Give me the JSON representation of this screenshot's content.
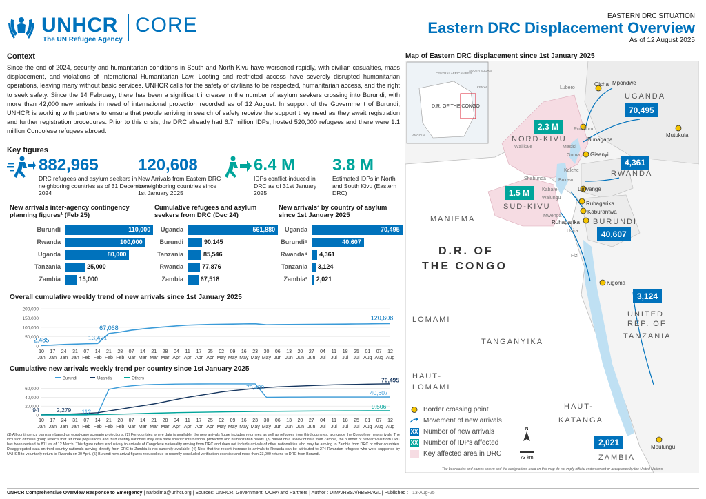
{
  "header": {
    "org": "UNHCR",
    "org_sub": "The UN Refugee Agency",
    "product": "CORE",
    "kicker": "EASTERN DRC SITUATION",
    "title": "Eastern DRC Displacement Overview",
    "date": "As of 12 August 2025"
  },
  "context": {
    "heading": "Context",
    "text": "Since the end of 2024, security and humanitarian conditions in South and North Kivu have worsened rapidly, with civilian casualties, mass displacement, and violations of International Humanitarian Law. Looting and restricted access have severely disrupted humanitarian operations, leaving many without basic services. UNHCR calls for the safety of civilians to be respected, humanitarian access, and the right to seek safety. Since the 14 February, there has been a significant increase in the number of asylum seekers crossing into Burundi, with more than 42,000 new arrivals in need of international protection recorded as of 12 August. In support of the Government of Burundi, UNHCR is working with partners to ensure that people arriving in search of safety receive the support they need as they await registration and further registration procedures. Prior to this crisis, the DRC already had 6.7 million IDPs, hosted 520,000 refugees and there were 1.1 million Congolese refugees abroad."
  },
  "key_figures": {
    "heading": "Key figures",
    "items": [
      {
        "value": "882,965",
        "desc": "DRC refugees and asylum seekers in neighboring countries as of 31 December 2024"
      },
      {
        "value": "120,608",
        "desc": "New Arrivals from Eastern DRC to neighboring countries since 1st January 2025"
      },
      {
        "value": "6.4 M",
        "desc": "IDPs conflict-induced in DRC as of 31st January 2025"
      },
      {
        "value": "3.8 M",
        "desc": "Estimated IDPs in North and South Kivu (Eastern DRC)"
      }
    ]
  },
  "bar_charts": [
    {
      "title": "New arrivals inter-agency contingency planning figures¹ (Feb 25)",
      "chart_data": {
        "type": "bar",
        "categories": [
          "Burundi",
          "Rwanda",
          "Uganda",
          "Tanzania",
          "Zambia"
        ],
        "values": [
          110000,
          100000,
          80000,
          25000,
          15000
        ],
        "labels": [
          "110,000",
          "100,000",
          "80,000",
          "25,000",
          "15,000"
        ]
      }
    },
    {
      "title": "Cumulative refugees and asylum seekers from DRC (Dec 24)",
      "chart_data": {
        "type": "bar",
        "categories": [
          "Uganda",
          "Burundi",
          "Tanzania",
          "Rwanda",
          "Zambia"
        ],
        "values": [
          561880,
          90145,
          85546,
          77876,
          67518
        ],
        "labels": [
          "561,880",
          "90,145",
          "85,546",
          "77,876",
          "67,518"
        ]
      }
    },
    {
      "title": "New arrivals² by country of asylum since 1st January 2025",
      "chart_data": {
        "type": "bar",
        "categories": [
          "Uganda",
          "Burundi⁵",
          "Rwanda⁴",
          "Tanzania",
          "Zambia³"
        ],
        "values": [
          70495,
          40607,
          4361,
          3124,
          2021
        ],
        "labels": [
          "70,495",
          "40,607",
          "4,361",
          "3,124",
          "2,021"
        ]
      }
    }
  ],
  "trend_chart": {
    "title": "Overall cumulative weekly trend of new arrivals since 1st January 2025",
    "chart_data": {
      "type": "line",
      "y_ticks": [
        "200,000",
        "150,000",
        "100,000",
        "50,000",
        "0"
      ],
      "ylim": [
        0,
        200000
      ],
      "x_labels": [
        "10 Jan",
        "17 Jan",
        "24 Jan",
        "31 Jan",
        "07 Feb",
        "14 Feb",
        "21 Feb",
        "28 Feb",
        "07 Mar",
        "14 Mar",
        "21 Mar",
        "28 Mar",
        "04 Apr",
        "11 Apr",
        "17 Apr",
        "25 Apr",
        "02 May",
        "09 May",
        "16 May",
        "23 May",
        "30 May",
        "06 Jun",
        "13 Jun",
        "20 Jun",
        "27 Jun",
        "04 Jul",
        "11 Jul",
        "18 Jul",
        "25 Jul",
        "01 Aug",
        "07 Aug",
        "12 Aug"
      ],
      "values": [
        2485,
        5000,
        8000,
        10000,
        12000,
        13421,
        67068,
        75000,
        85000,
        92000,
        98000,
        103000,
        108000,
        112000,
        114000,
        116000,
        117000,
        118000,
        119000,
        119500,
        114000,
        115000,
        115500,
        116000,
        116500,
        117000,
        117500,
        118000,
        118500,
        119000,
        120000,
        120608
      ],
      "point_labels": [
        {
          "i": 0,
          "text": "2,485"
        },
        {
          "i": 5,
          "text": "13,421"
        },
        {
          "i": 6,
          "text": "67,068"
        },
        {
          "i": 31,
          "text": "120,608"
        }
      ]
    }
  },
  "country_chart": {
    "title": "Cumulative new arrivals weekly trend per country since 1st January 2025",
    "chart_data": {
      "type": "line",
      "y_ticks": [
        "60,000",
        "40,000",
        "20,000",
        "0"
      ],
      "ylim": [
        0,
        75000
      ],
      "x_labels": [
        "10 Jan",
        "17 Jan",
        "24 Jan",
        "31 Jan",
        "07 Feb",
        "14 Feb",
        "21 Feb",
        "28 Feb",
        "07 Mar",
        "14 Mar",
        "21 Mar",
        "28 Mar",
        "04 Apr",
        "11 Apr",
        "17 Apr",
        "25 Apr",
        "02 May",
        "09 May",
        "16 May",
        "23 May",
        "30 May",
        "06 Jun",
        "13 Jun",
        "20 Jun",
        "27 Jun",
        "04 Jul",
        "11 Jul",
        "18 Jul",
        "25 Jul",
        "01 Aug",
        "07 Aug",
        "12 Aug"
      ],
      "series": [
        {
          "name": "Burundi",
          "color": "#3B9BD8",
          "values": [
            0,
            0,
            0,
            0,
            0,
            2279,
            58000,
            63000,
            66000,
            68000,
            69000,
            69500,
            70000,
            70200,
            70300,
            70400,
            70420,
            70420,
            70420,
            70420,
            40000,
            40200,
            40300,
            40400,
            40450,
            40500,
            40520,
            40550,
            40570,
            40590,
            40600,
            40607
          ]
        },
        {
          "name": "Uganda",
          "color": "#15355E",
          "values": [
            94,
            800,
            1600,
            2500,
            3500,
            5000,
            9000,
            13000,
            17000,
            21000,
            25000,
            30000,
            35000,
            40000,
            44000,
            48000,
            52000,
            55000,
            57500,
            60000,
            62000,
            63500,
            64500,
            65500,
            66500,
            67500,
            68200,
            68800,
            69300,
            69800,
            70200,
            70495
          ]
        },
        {
          "name": "Others",
          "color": "#00A59B",
          "values": [
            112,
            200,
            300,
            400,
            500,
            700,
            1200,
            1800,
            2500,
            3200,
            3900,
            4500,
            5100,
            5600,
            6000,
            6400,
            6800,
            7100,
            7400,
            7700,
            8000,
            8200,
            8400,
            8600,
            8800,
            9000,
            9100,
            9200,
            9300,
            9400,
            9450,
            9506
          ]
        }
      ],
      "point_labels": [
        {
          "text": "94"
        },
        {
          "text": "2,279"
        },
        {
          "text": "112"
        },
        {
          "text": "70,420"
        },
        {
          "text": "70,495"
        },
        {
          "text": "40,607"
        },
        {
          "text": "9,506"
        }
      ]
    }
  },
  "footnotes": "(1) All contingency plans are based on worst-case scenario projections. (2) For countries where data is available, the new arrivals figure includes returnees as well as refugees from third countries, alongside the Congolese new arrivals. The inclusion of these group reflects that returnee populations and third country nationals may also have specific international protection and humanitarian needs. (3) Based on a review of data from Zambia, the number of new arrivals from DRC has been revised to 811 as of 12 March. This figure refers exclusively to arrivals of Congolese nationality arriving from DRC and does not include arrivals of other nationalities who may be arriving to Zambia from DRC or other countries. Disaggregated data on third country nationals arriving directly from DRC to Zambia is not currently available. (4) Note that the recent increase in arrivals to Rwanda can be attributed to 274 Rwandan refugees who were supported by UNHCR to voluntarily return to Rwanda on 30 April. (5) Burundi new arrival figures reduced due to recently concluded verification exercise and more than 23,000 returns to DRC from Burundi.",
  "footer": {
    "left": "UNHCR Comprehensive Overview Response to Emergency",
    "mid": " | narbdima@unhcr.org | Sources: UNHCR, Government, OCHA and Partners | Author : DIMA/RBSA/RBEHAGL | Published :",
    "date": "13-Aug-25"
  },
  "map": {
    "title": "Map of Eastern DRC displacement since 1st January 2025",
    "inset_label": "D.R. OF THE CONGO",
    "inset_labels": [
      "CENTRAL AFRICAN REP.",
      "SOUTH SUDAN",
      "KENYA",
      "ANGOLA"
    ],
    "regions": [
      "UGANDA",
      "NORD-KIVU",
      "RWANDA",
      "SUD-KIVU",
      "MANIEMA",
      "BURUNDI",
      "D.R. OF",
      "THE CONGO",
      "LOMAMI",
      "TANGANYIKA",
      "UNITED",
      "REP. OF",
      "TANZANIA",
      "HAUT-",
      "LOMAMI",
      "HAUT-",
      "KATANGA",
      "ZAMBIA"
    ],
    "places": [
      "Oicha",
      "Mpondwe",
      "Lubero",
      "Rutshuru",
      "Bunagana",
      "Mutukula",
      "Walikale",
      "Masisi",
      "Goma",
      "Gisenyi",
      "Kalehe",
      "Shabunda",
      "Bukavu",
      "Kabare",
      "Walungu",
      "Dinvange",
      "Ruhagarika",
      "Kaburantwa",
      "Mwenga",
      "Ruhagarika",
      "Uvira",
      "Fizi",
      "Kigoma",
      "Mpulungu"
    ],
    "boxes": [
      {
        "value": "70,495",
        "kind": "arrivals"
      },
      {
        "value": "2.3 M",
        "kind": "idps"
      },
      {
        "value": "4,361",
        "kind": "arrivals"
      },
      {
        "value": "1.5 M",
        "kind": "idps"
      },
      {
        "value": "40,607",
        "kind": "arrivals"
      },
      {
        "value": "3,124",
        "kind": "arrivals"
      },
      {
        "value": "2,021",
        "kind": "arrivals"
      }
    ],
    "legend": [
      {
        "icon": "border-crossing-icon",
        "label": "Border crossing point"
      },
      {
        "icon": "arrow-icon",
        "label": "Movement of new arrivals"
      },
      {
        "icon": "arrivals-box-icon",
        "label": "Number of new arrivals",
        "sym": "XX"
      },
      {
        "icon": "idps-box-icon",
        "label": "Number of IDPs affected",
        "sym": "XX"
      },
      {
        "icon": "area-icon",
        "label": "Key affected area in DRC"
      }
    ],
    "scale": "73 km",
    "north": "N",
    "disclaimer": "The boundaries and names shown and the designations used on this map do not imply official endorsement or acceptance by the United Nations"
  },
  "colors": {
    "primary": "#0072BC",
    "teal": "#00A59B",
    "navy": "#15355E",
    "light": "#3B9BD8",
    "affected": "#F6DCE3"
  }
}
